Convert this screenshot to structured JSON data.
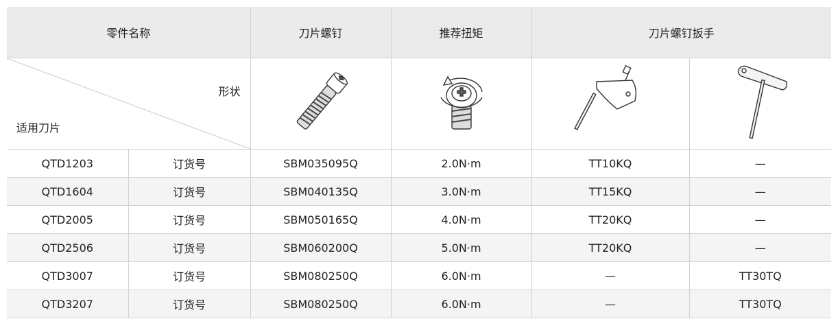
{
  "table": {
    "header": [
      "零件名称",
      "刀片螺钉",
      "推荐扭矩",
      "刀片螺钉扳手"
    ],
    "shape_label": "形状",
    "insert_label": "适用刀片",
    "rows": [
      [
        "QTD1203",
        "订货号",
        "SBM035095Q",
        "2.0N·m",
        "TT10KQ",
        "—"
      ],
      [
        "QTD1604",
        "订货号",
        "SBM040135Q",
        "3.0N·m",
        "TT15KQ",
        "—"
      ],
      [
        "QTD2005",
        "订货号",
        "SBM050165Q",
        "4.0N·m",
        "TT20KQ",
        "—"
      ],
      [
        "QTD2506",
        "订货号",
        "SBM060200Q",
        "5.0N·m",
        "TT20KQ",
        "—"
      ],
      [
        "QTD3007",
        "订货号",
        "SBM080250Q",
        "6.0N·m",
        "—",
        "TT30TQ"
      ],
      [
        "QTD3207",
        "订货号",
        "SBM080250Q",
        "6.0N·m",
        "—",
        "TT30TQ"
      ]
    ]
  }
}
